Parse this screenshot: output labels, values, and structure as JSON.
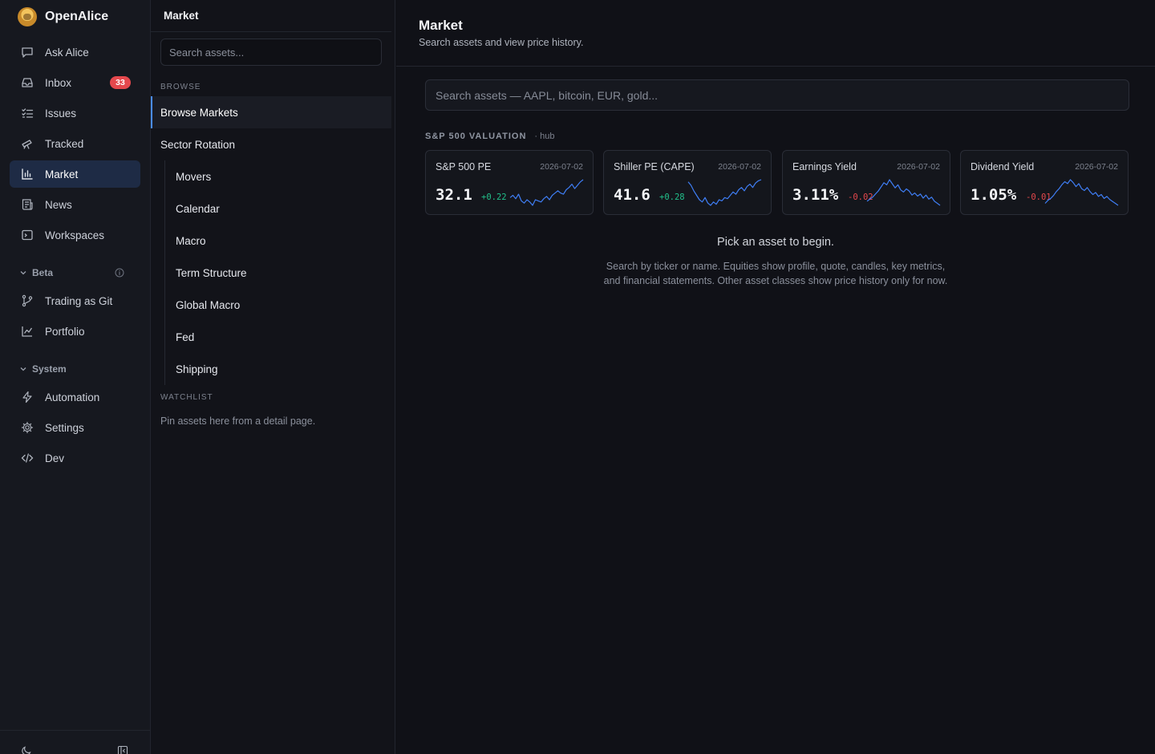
{
  "app": {
    "name": "OpenAlice"
  },
  "nav": {
    "items": [
      {
        "label": "Ask Alice",
        "icon": "chat-bubble-icon"
      },
      {
        "label": "Inbox",
        "icon": "inbox-icon",
        "badge": "33"
      },
      {
        "label": "Issues",
        "icon": "checklist-icon"
      },
      {
        "label": "Tracked",
        "icon": "telescope-icon"
      },
      {
        "label": "Market",
        "icon": "bar-chart-icon",
        "active": true
      },
      {
        "label": "News",
        "icon": "newspaper-icon"
      },
      {
        "label": "Workspaces",
        "icon": "terminal-icon"
      }
    ],
    "beta": {
      "label": "Beta",
      "items": [
        {
          "label": "Trading as Git",
          "icon": "git-branch-icon"
        },
        {
          "label": "Portfolio",
          "icon": "line-chart-icon"
        }
      ]
    },
    "system": {
      "label": "System",
      "items": [
        {
          "label": "Automation",
          "icon": "lightning-icon"
        },
        {
          "label": "Settings",
          "icon": "gear-icon"
        },
        {
          "label": "Dev",
          "icon": "code-icon"
        }
      ]
    }
  },
  "sub": {
    "title": "Market",
    "search_placeholder": "Search assets...",
    "browse_label": "BROWSE",
    "items": {
      "browse_markets": "Browse Markets",
      "sector_rotation": "Sector Rotation",
      "movers": "Movers",
      "calendar": "Calendar",
      "macro": "Macro",
      "term_structure": "Term Structure",
      "global_macro": "Global Macro",
      "fed": "Fed",
      "shipping": "Shipping"
    },
    "watchlist_label": "WATCHLIST",
    "watchlist_empty": "Pin assets here from a detail page."
  },
  "main": {
    "title": "Market",
    "subtitle": "Search assets and view price history.",
    "search_placeholder": "Search assets — AAPL, bitcoin, EUR, gold...",
    "valuation": {
      "title": "S&P 500 VALUATION",
      "tag": "· hub",
      "cards": [
        {
          "name": "S&P 500 PE",
          "date": "2026-07-02",
          "value": "32.1",
          "change": "+0.22",
          "direction": "up",
          "spark": [
            22,
            24,
            21,
            25,
            19,
            17,
            20,
            18,
            15,
            20,
            19,
            18,
            21,
            23,
            20,
            24,
            26,
            28,
            26,
            25,
            29,
            31,
            34,
            30,
            33,
            36,
            38
          ]
        },
        {
          "name": "Shiller PE (CAPE)",
          "date": "2026-07-02",
          "value": "41.6",
          "change": "+0.28",
          "direction": "up",
          "spark": [
            38,
            35,
            30,
            26,
            22,
            20,
            24,
            19,
            17,
            20,
            18,
            22,
            21,
            24,
            23,
            26,
            29,
            27,
            31,
            33,
            30,
            34,
            36,
            33,
            37,
            39,
            40
          ]
        },
        {
          "name": "Earnings Yield",
          "date": "2026-07-02",
          "value": "3.11%",
          "change": "-0.02",
          "direction": "down",
          "spark": [
            20,
            22,
            24,
            27,
            30,
            34,
            38,
            36,
            41,
            37,
            33,
            36,
            31,
            29,
            32,
            30,
            26,
            28,
            25,
            27,
            23,
            26,
            22,
            24,
            20,
            18,
            16
          ]
        },
        {
          "name": "Dividend Yield",
          "date": "2026-07-02",
          "value": "1.05%",
          "change": "-0.01",
          "direction": "down",
          "spark": [
            18,
            21,
            23,
            26,
            30,
            33,
            37,
            40,
            38,
            42,
            39,
            35,
            38,
            33,
            31,
            34,
            30,
            27,
            29,
            25,
            27,
            23,
            25,
            22,
            20,
            18,
            16
          ]
        }
      ]
    },
    "empty_title": "Pick an asset to begin.",
    "empty_desc_1": "Search by ticker or name. Equities show profile, quote, candles, key metrics,",
    "empty_desc_2": "and financial statements. Other asset classes show price history only for now."
  },
  "colors": {
    "accent": "#4a8cf7",
    "positive": "#22c08a",
    "negative": "#e5484d",
    "spark": "#3f7ef5",
    "badge": "#e5484d"
  }
}
